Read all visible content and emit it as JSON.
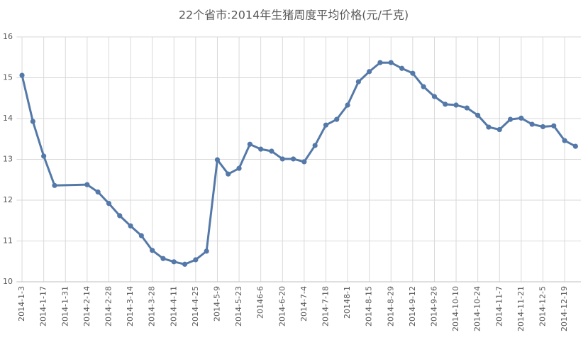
{
  "chart_data": {
    "type": "line",
    "title": "22个省市:2014年生猪周度平均价格(元/千克)",
    "categories": [
      "2014-1-3",
      null,
      "2014-1-17",
      null,
      "2014-1-31",
      null,
      "2014-2-14",
      null,
      "2014-2-28",
      null,
      "2014-3-14",
      null,
      "2014-3-28",
      null,
      "2014-4-11",
      null,
      "2014-4-25",
      null,
      "2014-5-9",
      null,
      "2014-5-23",
      null,
      "20146-6",
      null,
      "2014-6-20",
      null,
      "2014-7-4",
      null,
      "2014-7-18",
      null,
      "20148-1",
      null,
      "2014-8-15",
      null,
      "2014-8-29",
      null,
      "2014-9-12",
      null,
      "2014-9-26",
      null,
      "2014-10-10",
      null,
      "2014-10-24",
      null,
      "2014-11-7",
      null,
      "2014-11-21",
      null,
      "2014-12-5",
      null,
      "2014-12-19",
      null
    ],
    "series": [
      {
        "color": "#5479a8",
        "values": [
          15.06,
          13.93,
          13.08,
          12.36,
          null,
          null,
          12.38,
          12.2,
          11.92,
          11.62,
          11.37,
          11.13,
          10.77,
          10.57,
          10.49,
          10.43,
          10.54,
          10.75,
          12.99,
          12.64,
          12.78,
          13.37,
          13.25,
          13.2,
          13.01,
          13.01,
          12.94,
          13.34,
          13.84,
          13.98,
          14.33,
          14.9,
          15.15,
          15.37,
          15.37,
          15.23,
          15.11,
          14.78,
          14.54,
          14.35,
          14.33,
          14.26,
          14.08,
          13.79,
          13.73,
          13.98,
          14.01,
          13.86,
          13.8,
          13.82,
          13.46,
          13.32
        ]
      }
    ],
    "ylim": [
      10,
      16
    ],
    "yticks": [
      10,
      11,
      12,
      13,
      14,
      15,
      16
    ],
    "grid": true,
    "markers": true
  }
}
